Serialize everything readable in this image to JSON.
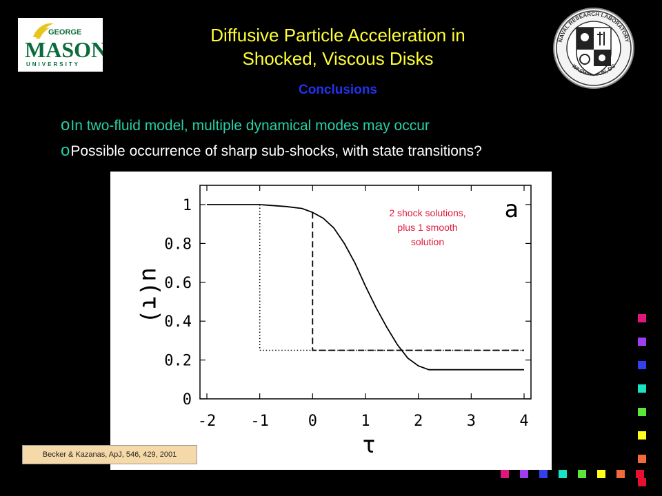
{
  "header": {
    "title_line1": "Diffusive Particle Acceleration in",
    "title_line2": "Shocked, Viscous Disks",
    "subtitle": "Conclusions"
  },
  "logos": {
    "gmu_top": "GEORGE",
    "gmu_main": "MASON",
    "gmu_bottom": "UNIVERSITY",
    "nrl_ring_top": "NAVAL RESEARCH LABORATORY",
    "nrl_ring_bottom": "WASHINGTON, DC"
  },
  "bullets": [
    {
      "mark": "o",
      "text": "In two-fluid model, multiple dynamical modes may occur"
    },
    {
      "mark": "o",
      "text": "Possible occurrence of sharp sub-shocks, with state transitions?"
    }
  ],
  "annotation": {
    "line1": "2 shock solutions,",
    "line2": "plus 1 smooth",
    "line3": "solution"
  },
  "citation": "Becker & Kazanas, ApJ, 546, 429, 2001",
  "decor_colors": [
    "#e0167f",
    "#a13df0",
    "#3340ee",
    "#18e3c5",
    "#5ae63a",
    "#ffff1a",
    "#f26a3a",
    "#e8102e"
  ],
  "chart_data": {
    "type": "line",
    "panel_label": "a",
    "xlabel": "τ",
    "ylabel": "u(τ)",
    "xlim": [
      -2,
      4
    ],
    "ylim": [
      0,
      1
    ],
    "x_ticks": [
      "-2",
      "-1",
      "0",
      "1",
      "2",
      "3",
      "4"
    ],
    "y_ticks": [
      "0",
      "0.2",
      "0.4",
      "0.6",
      "0.8",
      "1"
    ],
    "grid": false,
    "series": [
      {
        "style": "solid",
        "points": [
          [
            -2.0,
            1.0
          ],
          [
            -1.0,
            1.0
          ],
          [
            -0.5,
            0.99
          ],
          [
            -0.2,
            0.98
          ],
          [
            0.0,
            0.96
          ],
          [
            0.2,
            0.93
          ],
          [
            0.4,
            0.88
          ],
          [
            0.6,
            0.8
          ],
          [
            0.8,
            0.7
          ],
          [
            1.0,
            0.58
          ],
          [
            1.2,
            0.47
          ],
          [
            1.4,
            0.37
          ],
          [
            1.6,
            0.28
          ],
          [
            1.8,
            0.21
          ],
          [
            2.0,
            0.17
          ],
          [
            2.2,
            0.15
          ],
          [
            2.5,
            0.15
          ],
          [
            3.0,
            0.15
          ],
          [
            4.0,
            0.15
          ]
        ]
      },
      {
        "style": "dotted",
        "points": [
          [
            -1.0,
            1.0
          ],
          [
            -1.0,
            0.25
          ],
          [
            4.0,
            0.25
          ]
        ]
      },
      {
        "style": "dashed",
        "points": [
          [
            0.0,
            0.96
          ],
          [
            0.0,
            0.25
          ],
          [
            4.0,
            0.25
          ]
        ]
      }
    ]
  }
}
